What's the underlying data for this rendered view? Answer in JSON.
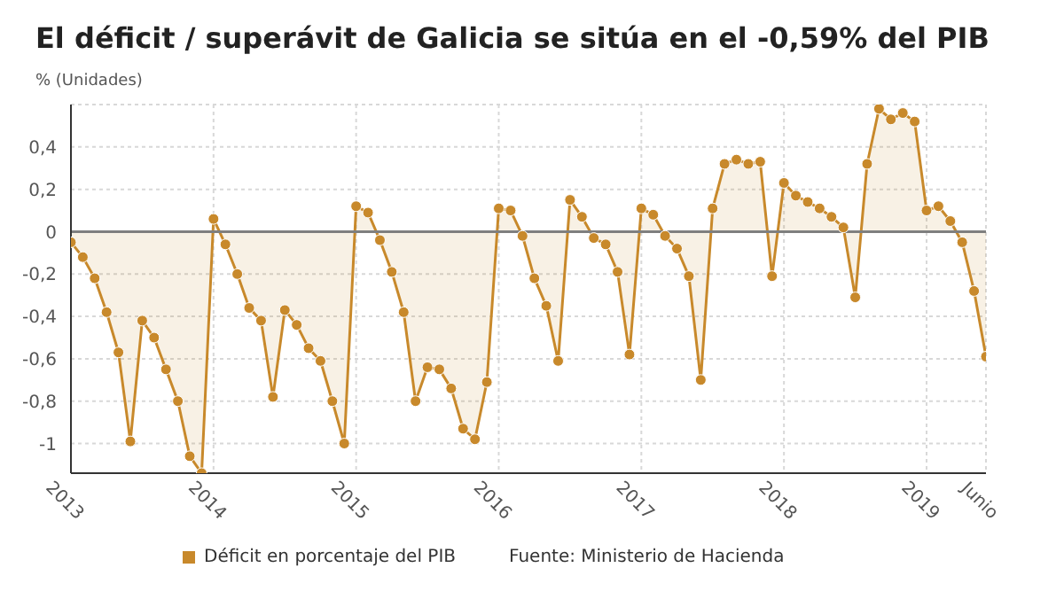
{
  "chart_data": {
    "type": "area",
    "title": "El déficit / superávit de Galicia se sitúa en el -0,59% del PIB",
    "ylabel": "% (Unidades)",
    "x": [
      "2013-01",
      "2013-02",
      "2013-03",
      "2013-04",
      "2013-05",
      "2013-06",
      "2013-07",
      "2013-08",
      "2013-09",
      "2013-10",
      "2013-11",
      "2013-12",
      "2014-01",
      "2014-02",
      "2014-03",
      "2014-04",
      "2014-05",
      "2014-06",
      "2014-07",
      "2014-08",
      "2014-09",
      "2014-10",
      "2014-11",
      "2014-12",
      "2015-01",
      "2015-02",
      "2015-03",
      "2015-04",
      "2015-05",
      "2015-06",
      "2015-07",
      "2015-08",
      "2015-09",
      "2015-10",
      "2015-11",
      "2015-12",
      "2016-01",
      "2016-02",
      "2016-03",
      "2016-04",
      "2016-05",
      "2016-06",
      "2016-07",
      "2016-08",
      "2016-09",
      "2016-10",
      "2016-11",
      "2016-12",
      "2017-01",
      "2017-02",
      "2017-03",
      "2017-04",
      "2017-05",
      "2017-06",
      "2017-07",
      "2017-08",
      "2017-09",
      "2017-10",
      "2017-11",
      "2017-12",
      "2018-01",
      "2018-02",
      "2018-03",
      "2018-04",
      "2018-05",
      "2018-06",
      "2018-07",
      "2018-08",
      "2018-09",
      "2018-10",
      "2018-11",
      "2018-12",
      "2019-01",
      "2019-02",
      "2019-03",
      "2019-04",
      "2019-05",
      "2019-06"
    ],
    "series": [
      {
        "name": "Déficit en porcentaje del PIB",
        "color": "#c8892b",
        "values": [
          -0.05,
          -0.12,
          -0.22,
          -0.38,
          -0.57,
          -0.99,
          -0.42,
          -0.5,
          -0.65,
          -0.8,
          -1.06,
          -1.14,
          0.06,
          -0.06,
          -0.2,
          -0.36,
          -0.42,
          -0.78,
          -0.37,
          -0.44,
          -0.55,
          -0.61,
          -0.8,
          -1.0,
          0.12,
          0.09,
          -0.04,
          -0.19,
          -0.38,
          -0.8,
          -0.64,
          -0.65,
          -0.74,
          -0.93,
          -0.98,
          -0.71,
          0.11,
          0.1,
          -0.02,
          -0.22,
          -0.35,
          -0.61,
          0.15,
          0.07,
          -0.03,
          -0.06,
          -0.19,
          -0.58,
          0.11,
          0.08,
          -0.02,
          -0.08,
          -0.21,
          -0.7,
          0.11,
          0.32,
          0.34,
          0.32,
          0.33,
          -0.21,
          0.23,
          0.17,
          0.14,
          0.11,
          0.07,
          0.02,
          -0.31,
          0.32,
          0.58,
          0.53,
          0.56,
          0.52,
          0.1,
          0.12,
          0.05,
          -0.05,
          -0.28,
          -0.59
        ]
      }
    ],
    "xlim": [
      "2013-01",
      "2019-06"
    ],
    "xticks": [
      {
        "value": "2013-01",
        "label": "2013"
      },
      {
        "value": "2014-01",
        "label": "2014"
      },
      {
        "value": "2015-01",
        "label": "2015"
      },
      {
        "value": "2016-01",
        "label": "2016"
      },
      {
        "value": "2017-01",
        "label": "2017"
      },
      {
        "value": "2018-01",
        "label": "2018"
      },
      {
        "value": "2019-01",
        "label": "2019"
      },
      {
        "value": "2019-06",
        "label": "Junio"
      }
    ],
    "ylim": [
      -1.14,
      0.6
    ],
    "yticks": [
      {
        "value": -1,
        "label": "-1"
      },
      {
        "value": -0.8,
        "label": "-0,8"
      },
      {
        "value": -0.6,
        "label": "-0,6"
      },
      {
        "value": -0.4,
        "label": "-0,4"
      },
      {
        "value": -0.2,
        "label": "-0,2"
      },
      {
        "value": 0,
        "label": "0"
      },
      {
        "value": 0.2,
        "label": "0,2"
      },
      {
        "value": 0.4,
        "label": "0,4"
      }
    ],
    "ref_lines": [
      {
        "axis": "y",
        "value": 0,
        "color": "#7f7f7f"
      }
    ],
    "grid": true,
    "legend": "bottom",
    "marker": "circle",
    "annotations": [
      "Fuente: Ministerio de Hacienda"
    ]
  }
}
